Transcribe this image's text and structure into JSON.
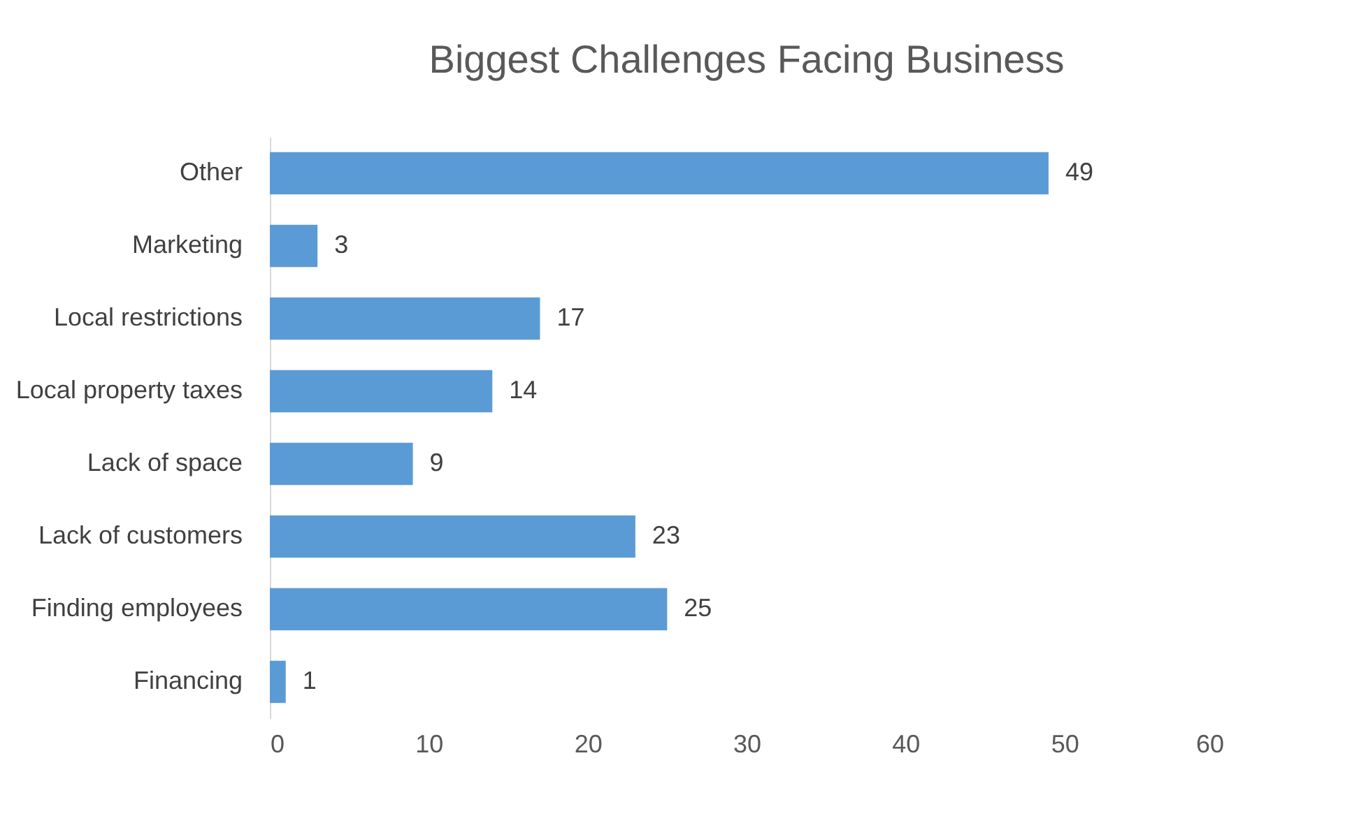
{
  "chart_data": {
    "type": "bar",
    "orientation": "horizontal",
    "title": "Biggest Challenges Facing Business",
    "categories": [
      "Other",
      "Marketing",
      "Local restrictions",
      "Local property taxes",
      "Lack of space",
      "Lack of customers",
      "Finding employees",
      "Financing"
    ],
    "values": [
      49,
      3,
      17,
      14,
      9,
      23,
      25,
      1
    ],
    "color": "#5b9bd5",
    "xlim": [
      0,
      60
    ],
    "xticks": [
      0,
      10,
      20,
      30,
      40,
      50,
      60
    ],
    "grid": false,
    "data_labels": true
  }
}
